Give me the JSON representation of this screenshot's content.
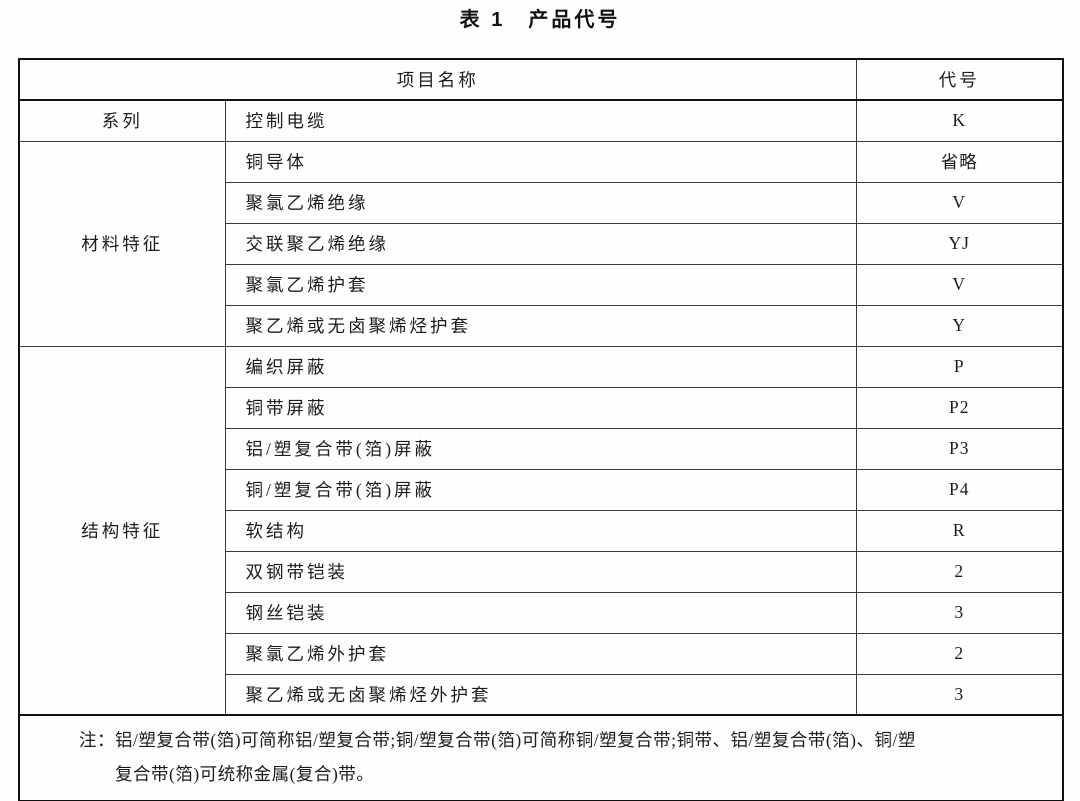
{
  "title": "表 1　产品代号",
  "table": {
    "headers": {
      "item_name": "项目名称",
      "code": "代号"
    },
    "sections": [
      {
        "category": "系列",
        "rows": [
          {
            "item": "控制电缆",
            "code": "K"
          }
        ]
      },
      {
        "category": "材料特征",
        "rows": [
          {
            "item": "铜导体",
            "code": "省略"
          },
          {
            "item": "聚氯乙烯绝缘",
            "code": "V"
          },
          {
            "item": "交联聚乙烯绝缘",
            "code": "YJ"
          },
          {
            "item": "聚氯乙烯护套",
            "code": "V"
          },
          {
            "item": "聚乙烯或无卤聚烯烃护套",
            "code": "Y"
          }
        ]
      },
      {
        "category": "结构特征",
        "rows": [
          {
            "item": "编织屏蔽",
            "code": "P"
          },
          {
            "item": "铜带屏蔽",
            "code": "P2"
          },
          {
            "item": "铝/塑复合带(箔)屏蔽",
            "code": "P3"
          },
          {
            "item": "铜/塑复合带(箔)屏蔽",
            "code": "P4"
          },
          {
            "item": "软结构",
            "code": "R"
          },
          {
            "item": "双钢带铠装",
            "code": "2"
          },
          {
            "item": "钢丝铠装",
            "code": "3"
          },
          {
            "item": "聚氯乙烯外护套",
            "code": "2"
          },
          {
            "item": "聚乙烯或无卤聚烯烃外护套",
            "code": "3"
          }
        ]
      }
    ],
    "note": {
      "lines": [
        "注：铝/塑复合带(箔)可简称铝/塑复合带;铜/塑复合带(箔)可简称铜/塑复合带;铜带、铝/塑复合带(箔)、铜/塑",
        "复合带(箔)可统称金属(复合)带。"
      ]
    }
  }
}
